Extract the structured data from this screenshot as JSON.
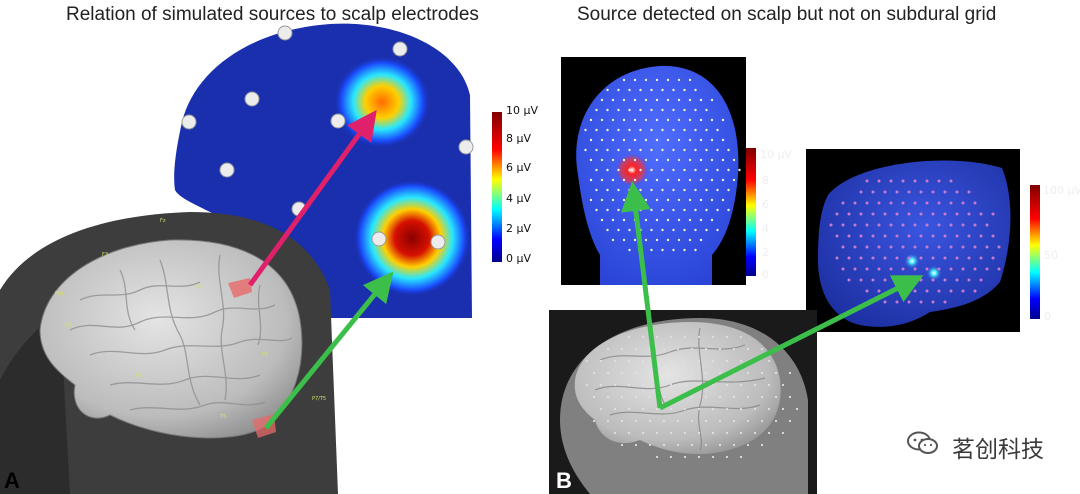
{
  "panel_a": {
    "title": "Relation of simulated sources to scalp electrodes",
    "letter": "A",
    "colorbar": {
      "labels": [
        "10 µV",
        "8 µV",
        "6 µV",
        "4 µV",
        "2 µV",
        "0 µV"
      ],
      "range": [
        0,
        10
      ]
    },
    "brain_labels": [
      "Fz",
      "F3",
      "Fp1",
      "F7",
      "C3",
      "T3",
      "P3",
      "T5",
      "P7/T5"
    ]
  },
  "panel_b": {
    "title": "Source detected on scalp but not on subdural grid",
    "letter": "B",
    "colorbar_scalp": {
      "labels": [
        "10 µV",
        "8",
        "6",
        "4",
        "2",
        "0"
      ],
      "range": [
        0,
        10
      ]
    },
    "colorbar_grid": {
      "labels": [
        "100 µV",
        "50",
        "0"
      ],
      "range": [
        0,
        100
      ]
    }
  },
  "arrow_colors": {
    "pink": "#e0206a",
    "green": "#3cbf4a"
  },
  "watermark": {
    "icon": "wechat-icon",
    "text": "茗创科技"
  }
}
